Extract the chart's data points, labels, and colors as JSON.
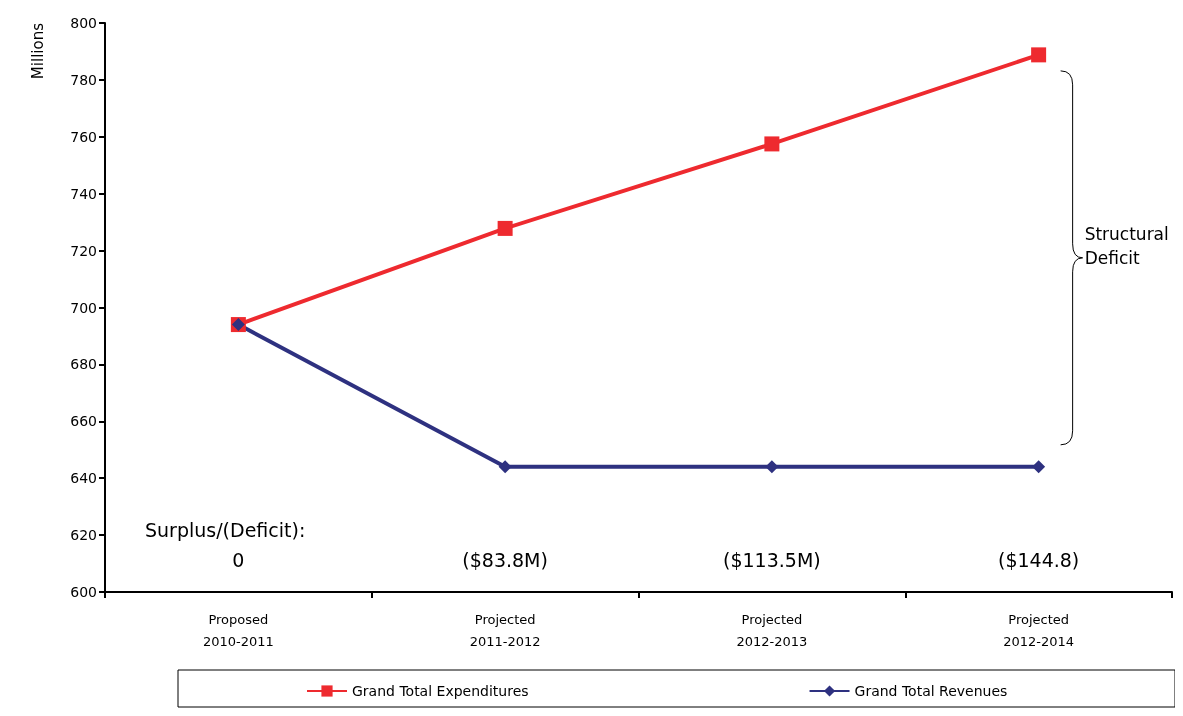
{
  "chart_data": {
    "type": "line",
    "ylabel": "Millions",
    "categories": [
      "Proposed\n2010-2011",
      "Projected\n2011-2012",
      "Projected\n2012-2013",
      "Projected\n2012-2014"
    ],
    "series": [
      {
        "name": "Grand Total Expenditures",
        "color": "#ee2a2f",
        "marker": "square",
        "values": [
          694,
          727.8,
          757.5,
          788.8
        ]
      },
      {
        "name": "Grand Total Revenues",
        "color": "#2e3180",
        "marker": "diamond",
        "values": [
          694,
          644,
          644,
          644
        ]
      }
    ],
    "ylim": [
      600,
      800
    ],
    "yticks": [
      600,
      620,
      640,
      660,
      680,
      700,
      720,
      740,
      760,
      780,
      800
    ],
    "grid": false,
    "legend": "bottom",
    "line_style": "solid",
    "annotations": [
      "Surplus/(Deficit):",
      "0",
      "($83.8M)",
      "($113.5M)",
      "($144.8)",
      "Structural\nDeficit"
    ]
  }
}
